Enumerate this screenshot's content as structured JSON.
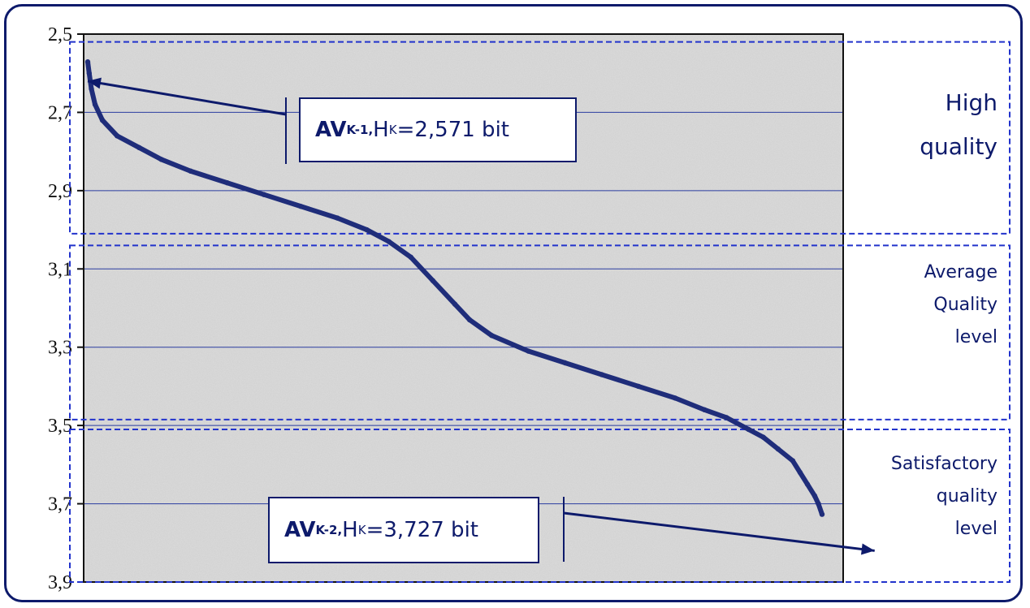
{
  "colors": {
    "frame": "#0d1a6b",
    "curve": "#1f2d7a",
    "grid": "#2a3ca0",
    "zone_border": "#2233cc",
    "text": "#0d1a6b"
  },
  "chart_data": {
    "type": "scatter",
    "title": "",
    "xlabel": "",
    "ylabel": "",
    "x_range": [
      0,
      1
    ],
    "ylim": [
      2.5,
      3.9
    ],
    "y_inverted": true,
    "yticks": [
      "2,5",
      "2,7",
      "2,9",
      "3,1",
      "3,3",
      "3,5",
      "3,7",
      "3,9"
    ],
    "ytick_values": [
      2.5,
      2.7,
      2.9,
      3.1,
      3.3,
      3.5,
      3.7,
      3.9
    ],
    "grid": "horizontal",
    "series": [
      {
        "x": [
          0.0,
          0.002,
          0.005,
          0.01,
          0.02,
          0.04,
          0.07,
          0.1,
          0.14,
          0.19,
          0.24,
          0.29,
          0.34,
          0.38,
          0.41,
          0.44,
          0.47,
          0.5,
          0.52,
          0.55,
          0.6,
          0.65,
          0.7,
          0.75,
          0.8,
          0.84,
          0.87,
          0.9,
          0.92,
          0.94,
          0.96,
          0.97,
          0.98,
          0.99,
          0.995,
          1.0
        ],
        "values": [
          2.571,
          2.6,
          2.64,
          2.68,
          2.72,
          2.76,
          2.79,
          2.82,
          2.85,
          2.88,
          2.91,
          2.94,
          2.97,
          3.0,
          3.03,
          3.07,
          3.13,
          3.19,
          3.23,
          3.27,
          3.31,
          3.34,
          3.37,
          3.4,
          3.43,
          3.46,
          3.48,
          3.51,
          3.53,
          3.56,
          3.59,
          3.62,
          3.65,
          3.68,
          3.7,
          3.727
        ]
      }
    ],
    "zones": [
      {
        "label_lines": [
          "High",
          "quality"
        ],
        "y_from": 2.52,
        "y_to": 3.01
      },
      {
        "label_lines": [
          "Average",
          "Quality",
          "level"
        ],
        "y_from": 3.04,
        "y_to": 3.485
      },
      {
        "label_lines": [
          "Satisfactory",
          "quality",
          "level"
        ],
        "y_from": 3.51,
        "y_to": 3.9
      }
    ],
    "annotations": [
      {
        "bold": "AV",
        "bold_sub": "K-1,",
        "text": " H",
        "sub": "K",
        "rest": "=2,571 bit",
        "points_to": [
          0.0,
          2.62
        ]
      },
      {
        "bold": "AV",
        "bold_sub": "K-2,",
        "text": " H",
        "sub": "K",
        "rest": "=3,727 bit",
        "points_to": [
          0.93,
          3.82
        ]
      }
    ]
  }
}
